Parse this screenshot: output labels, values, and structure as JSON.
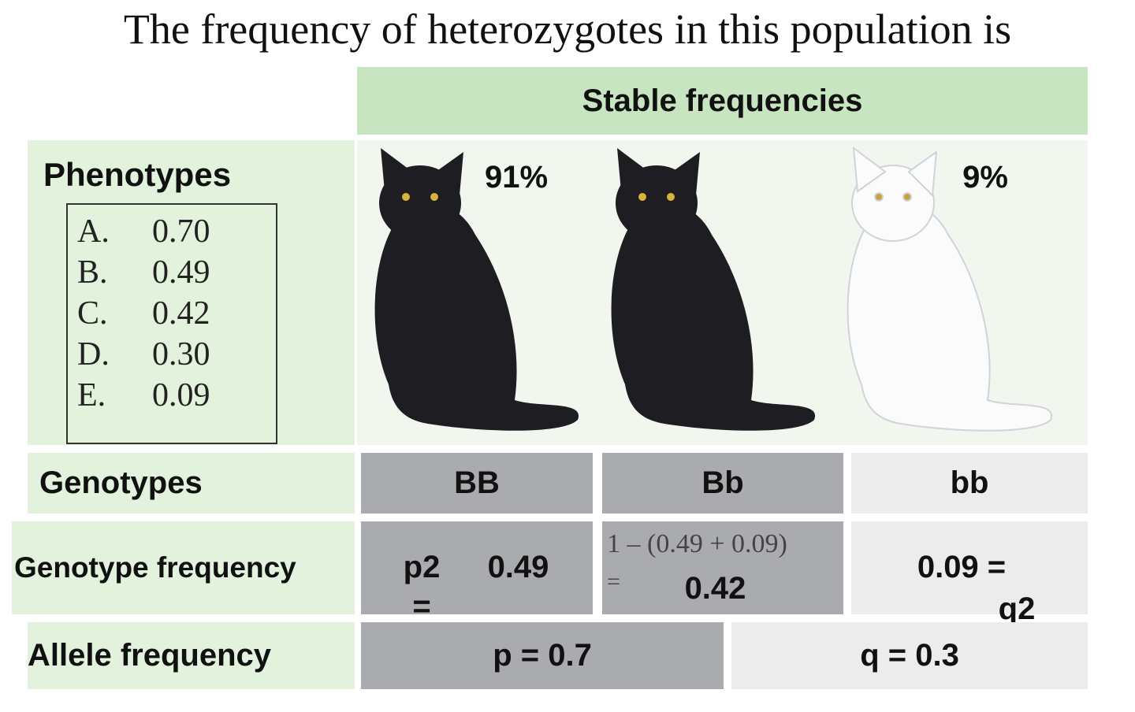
{
  "title": "The frequency of heterozygotes in this population is",
  "header": "Stable frequencies",
  "rows": {
    "phenotypes": "Phenotypes",
    "genotypes": "Genotypes",
    "genotype_frequency": "Genotype frequency",
    "allele_frequency": "Allele frequency"
  },
  "options": [
    {
      "letter": "A.",
      "value": "0.70"
    },
    {
      "letter": "B.",
      "value": "0.49"
    },
    {
      "letter": "C.",
      "value": "0.42"
    },
    {
      "letter": "D.",
      "value": "0.30"
    },
    {
      "letter": "E.",
      "value": "0.09"
    }
  ],
  "phenotype_percent": {
    "black": "91%",
    "white": "9%"
  },
  "genotypes": [
    "BB",
    "Bb",
    "bb"
  ],
  "genotype_frequency": {
    "BB": {
      "symbol": "p2",
      "equals": "=",
      "value": "0.49"
    },
    "Bb": {
      "formula": "1 – (0.49 + 0.09)",
      "equals": "=",
      "value": "0.42"
    },
    "bb": {
      "value": "0.09 =",
      "symbol": "q2"
    }
  },
  "allele_frequency": {
    "p": "p = 0.7",
    "q": "q = 0.3"
  }
}
